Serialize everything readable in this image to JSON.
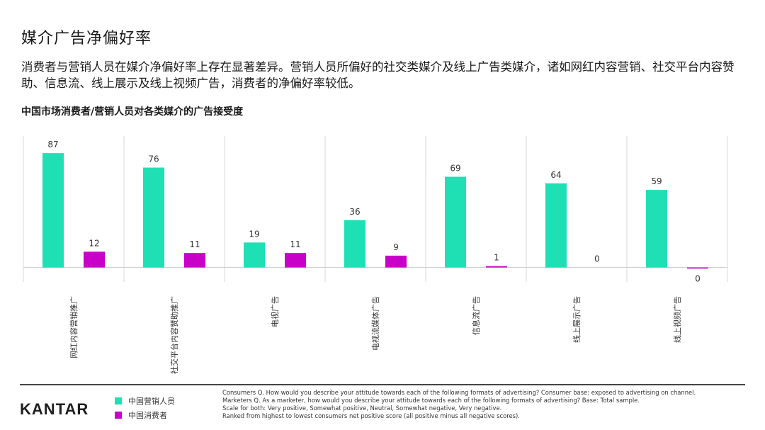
{
  "header": {
    "title": "媒介广告净偏好率",
    "subtitle": "消费者与营销人员在媒介净偏好率上存在显著差异。营销人员所偏好的社交类媒介及线上广告类媒介，诸如网红内容营销、社交平台内容赞助、信息流、线上展示及线上视频广告，消费者的净偏好率较低。"
  },
  "chart_data": {
    "type": "bar",
    "title": "中国市场消费者/营销人员对各类媒介的广告接受度",
    "categories": [
      "网红内容营销推广",
      "社交平台内容赞助推广",
      "电视广告",
      "电视流媒体广告",
      "信息流广告",
      "线上展示广告",
      "线上视频广告"
    ],
    "series": [
      {
        "name": "中国营销人员",
        "color": "#1fe0b4",
        "values": [
          87,
          76,
          19,
          36,
          69,
          64,
          59
        ],
        "labels": [
          "87",
          "76",
          "19",
          "36",
          "69",
          "64",
          "59"
        ]
      },
      {
        "name": "中国消费者",
        "color": "#c800c8",
        "values": [
          12,
          11,
          11,
          9,
          1,
          0,
          -0.4
        ],
        "labels": [
          "12",
          "11",
          "11",
          "9",
          "1",
          "0",
          "0"
        ]
      }
    ],
    "ylim": [
      -11,
      100
    ],
    "grid": false,
    "legend": "bottom-left"
  },
  "footer": {
    "brand": "KANTAR",
    "notes": [
      "Consumers Q. How would you describe your attitude towards each of the following formats of advertising? Consumer base: exposed to advertising on channel.",
      "Marketers Q. As a marketer, how would you describe your attitude towards each of the following formats of advertising? Base: Total sample.",
      "Scale for both: Very positive, Somewhat positive, Neutral, Somewhat negative, Very negative.",
      "Ranked from highest to lowest consumers net positive score (all positive minus all negative scores)."
    ]
  }
}
